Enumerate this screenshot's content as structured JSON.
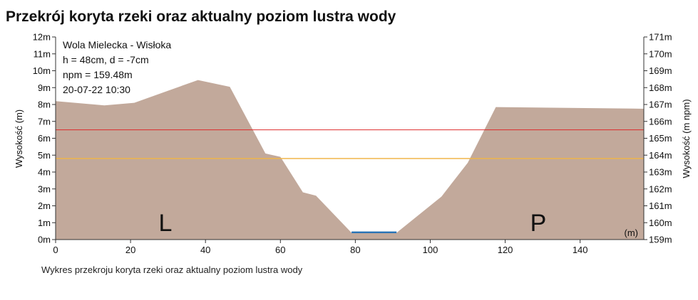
{
  "page": {
    "title": "Przekrój koryta rzeki oraz aktualny poziom lustra wody",
    "caption": "Wykres przekroju koryta rzeki oraz aktualny poziom lustra wody"
  },
  "info": {
    "station": "Wola Mielecka - Wisłoka",
    "levels": "h = 48cm, d = -7cm",
    "npm": "npm = 159.48m",
    "timestamp": "20-07-22 10:30"
  },
  "colors": {
    "terrain": "#c2a99b",
    "water": "#2a73b5",
    "alarm_line": "#dd2b2b",
    "warning_line": "#f0b64a",
    "axis": "#333333"
  },
  "chart_data": {
    "type": "area",
    "xlabel": "",
    "x_unit": "(m)",
    "ylabel_left": "Wysokość (m)",
    "ylabel_right": "Wysokość (m npm)",
    "xlim": [
      0,
      157
    ],
    "ylim_left": [
      0,
      12
    ],
    "ylim_right": [
      159,
      171
    ],
    "x_ticks": [
      0,
      20,
      40,
      60,
      80,
      100,
      120,
      140
    ],
    "y_ticks_left": [
      "0m",
      "1m",
      "2m",
      "3m",
      "4m",
      "5m",
      "6m",
      "7m",
      "8m",
      "9m",
      "10m",
      "11m",
      "12m"
    ],
    "y_ticks_right": [
      "159m",
      "160m",
      "161m",
      "162m",
      "163m",
      "164m",
      "165m",
      "166m",
      "167m",
      "168m",
      "169m",
      "170m",
      "171m"
    ],
    "terrain": {
      "x": [
        0,
        13,
        21,
        38,
        46.5,
        56,
        60,
        66,
        69.5,
        79,
        91,
        103,
        110,
        117.5,
        157
      ],
      "y": [
        8.2,
        7.95,
        8.1,
        9.45,
        9.05,
        5.1,
        4.9,
        2.8,
        2.6,
        0.4,
        0.4,
        2.55,
        4.55,
        7.85,
        7.75
      ]
    },
    "water": {
      "x_start": 79,
      "x_end": 91,
      "level": 0.48
    },
    "alarm_level": 6.5,
    "warning_level": 4.8,
    "bank_labels": {
      "left": "L",
      "right": "P"
    },
    "grid": false
  }
}
